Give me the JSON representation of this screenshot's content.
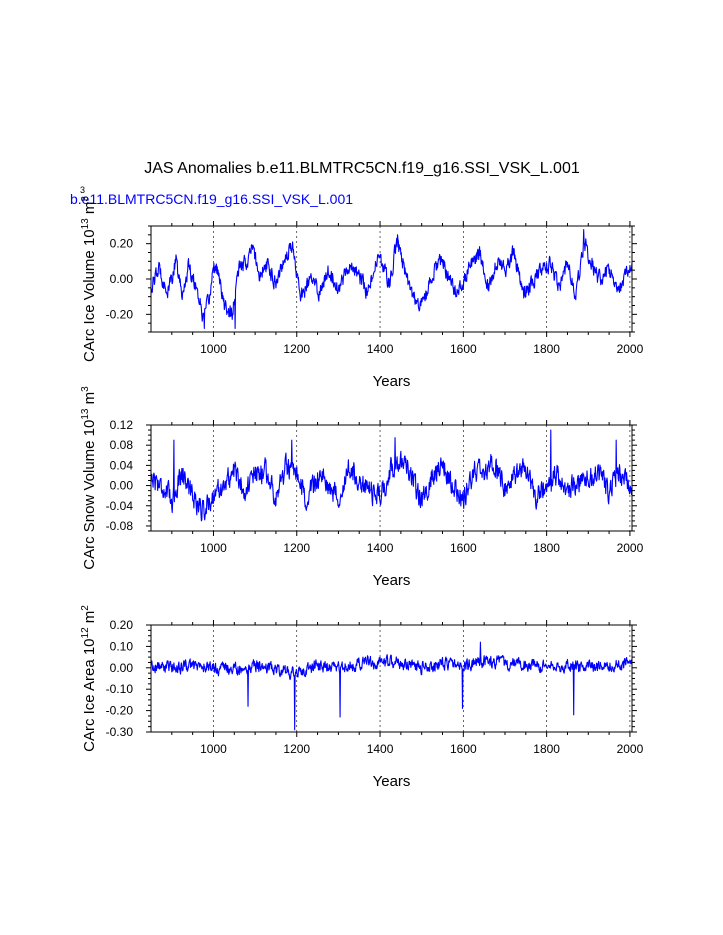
{
  "title": "JAS Anomalies b.e11.BLMTRC5CN.f19_g16.SSI_VSK_L.001",
  "colors": {
    "series": "#0000ff",
    "axis": "#000000",
    "grid": "#000000"
  },
  "chart_data": [
    {
      "type": "line",
      "subtitle": "b.e11.BLMTRC5CN.f19_g16.SSI_VSK_L.001",
      "corner_label": "3",
      "ylabel": "CArc Ice Volume 10",
      "ylabel_sup1": "13",
      "ylabel_mid": " m",
      "ylabel_sup2": "3",
      "xlabel": "Years",
      "xlim": [
        850,
        2005
      ],
      "ylim": [
        -0.3,
        0.3
      ],
      "xticks": [
        1000,
        1200,
        1400,
        1600,
        1800,
        2000
      ],
      "xtick_labels": [
        "1000",
        "1200",
        "1400",
        "1600",
        "1800",
        "2000"
      ],
      "yticks": [
        -0.2,
        0.0,
        0.2
      ],
      "ytick_labels": [
        "-0.20",
        "0.00",
        "0.20"
      ],
      "grid": "vertical dashed at x major ticks",
      "anchors": [
        [
          850,
          -0.05
        ],
        [
          870,
          0.06
        ],
        [
          890,
          -0.08
        ],
        [
          910,
          0.1
        ],
        [
          925,
          -0.1
        ],
        [
          940,
          0.08
        ],
        [
          960,
          -0.05
        ],
        [
          975,
          -0.22
        ],
        [
          990,
          -0.12
        ],
        [
          1000,
          0.08
        ],
        [
          1010,
          0.05
        ],
        [
          1025,
          -0.15
        ],
        [
          1045,
          -0.2
        ],
        [
          1060,
          0.05
        ],
        [
          1080,
          0.1
        ],
        [
          1095,
          0.18
        ],
        [
          1110,
          0.02
        ],
        [
          1130,
          0.08
        ],
        [
          1150,
          -0.02
        ],
        [
          1175,
          0.15
        ],
        [
          1190,
          0.18
        ],
        [
          1210,
          -0.1
        ],
        [
          1235,
          0.0
        ],
        [
          1255,
          -0.08
        ],
        [
          1275,
          0.06
        ],
        [
          1300,
          -0.05
        ],
        [
          1325,
          0.08
        ],
        [
          1350,
          0.02
        ],
        [
          1370,
          -0.08
        ],
        [
          1395,
          0.12
        ],
        [
          1410,
          0.05
        ],
        [
          1425,
          -0.02
        ],
        [
          1440,
          0.22
        ],
        [
          1455,
          0.1
        ],
        [
          1470,
          -0.05
        ],
        [
          1490,
          -0.15
        ],
        [
          1510,
          -0.1
        ],
        [
          1530,
          0.05
        ],
        [
          1550,
          0.1
        ],
        [
          1575,
          -0.05
        ],
        [
          1595,
          -0.05
        ],
        [
          1620,
          0.1
        ],
        [
          1640,
          0.15
        ],
        [
          1660,
          -0.05
        ],
        [
          1680,
          0.1
        ],
        [
          1700,
          0.05
        ],
        [
          1720,
          0.15
        ],
        [
          1745,
          -0.08
        ],
        [
          1770,
          0.0
        ],
        [
          1790,
          0.05
        ],
        [
          1810,
          0.08
        ],
        [
          1830,
          -0.05
        ],
        [
          1850,
          0.1
        ],
        [
          1870,
          -0.1
        ],
        [
          1890,
          0.22
        ],
        [
          1905,
          0.1
        ],
        [
          1925,
          0.0
        ],
        [
          1950,
          0.05
        ],
        [
          1975,
          -0.08
        ],
        [
          1990,
          0.02
        ],
        [
          2005,
          0.05
        ]
      ],
      "amplitude": 0.07,
      "spikes": [
        [
          978,
          -0.28
        ],
        [
          1052,
          -0.28
        ],
        [
          1442,
          0.25
        ],
        [
          1889,
          0.28
        ]
      ]
    },
    {
      "type": "line",
      "ylabel": "CArc Snow Volume 10",
      "ylabel_sup1": "13",
      "ylabel_mid": " m",
      "ylabel_sup2": "3",
      "xlabel": "Years",
      "xlim": [
        850,
        2005
      ],
      "ylim": [
        -0.09,
        0.12
      ],
      "xticks": [
        1000,
        1200,
        1400,
        1600,
        1800,
        2000
      ],
      "xtick_labels": [
        "1000",
        "1200",
        "1400",
        "1600",
        "1800",
        "2000"
      ],
      "yticks": [
        -0.08,
        -0.04,
        0.0,
        0.04,
        0.08,
        0.12
      ],
      "ytick_labels": [
        "-0.08",
        "-0.04",
        "0.00",
        "0.04",
        "0.08",
        "0.12"
      ],
      "grid": "vertical dashed at x major ticks",
      "anchors": [
        [
          850,
          0.02
        ],
        [
          875,
          0.0
        ],
        [
          900,
          -0.03
        ],
        [
          925,
          0.03
        ],
        [
          950,
          -0.02
        ],
        [
          975,
          -0.05
        ],
        [
          1000,
          -0.02
        ],
        [
          1025,
          0.0
        ],
        [
          1050,
          0.03
        ],
        [
          1075,
          -0.01
        ],
        [
          1100,
          0.02
        ],
        [
          1125,
          0.03
        ],
        [
          1150,
          -0.02
        ],
        [
          1175,
          0.04
        ],
        [
          1200,
          0.01
        ],
        [
          1225,
          -0.03
        ],
        [
          1250,
          0.02
        ],
        [
          1275,
          0.0
        ],
        [
          1300,
          -0.02
        ],
        [
          1325,
          0.03
        ],
        [
          1350,
          0.01
        ],
        [
          1375,
          -0.01
        ],
        [
          1400,
          -0.02
        ],
        [
          1425,
          0.03
        ],
        [
          1450,
          0.05
        ],
        [
          1475,
          0.01
        ],
        [
          1500,
          -0.03
        ],
        [
          1525,
          0.02
        ],
        [
          1550,
          0.04
        ],
        [
          1575,
          0.0
        ],
        [
          1600,
          -0.03
        ],
        [
          1625,
          0.03
        ],
        [
          1650,
          0.02
        ],
        [
          1675,
          0.05
        ],
        [
          1700,
          -0.01
        ],
        [
          1725,
          0.02
        ],
        [
          1750,
          0.03
        ],
        [
          1775,
          -0.02
        ],
        [
          1800,
          0.0
        ],
        [
          1825,
          0.02
        ],
        [
          1850,
          -0.02
        ],
        [
          1875,
          0.01
        ],
        [
          1900,
          0.02
        ],
        [
          1925,
          0.03
        ],
        [
          1950,
          -0.01
        ],
        [
          1975,
          0.02
        ],
        [
          2005,
          0.0
        ]
      ],
      "amplitude": 0.035,
      "spikes": [
        [
          905,
          0.09
        ],
        [
          1188,
          0.09
        ],
        [
          1436,
          0.095
        ],
        [
          1810,
          0.11
        ],
        [
          1967,
          0.09
        ]
      ]
    },
    {
      "type": "line",
      "ylabel": "CArc Ice Area 10",
      "ylabel_sup1": "12",
      "ylabel_mid": " m",
      "ylabel_sup2": "2",
      "xlabel": "Years",
      "xlim": [
        850,
        2005
      ],
      "ylim": [
        -0.3,
        0.2
      ],
      "xticks": [
        1000,
        1200,
        1400,
        1600,
        1800,
        2000
      ],
      "xtick_labels": [
        "1000",
        "1200",
        "1400",
        "1600",
        "1800",
        "2000"
      ],
      "yticks": [
        -0.3,
        -0.2,
        -0.1,
        0.0,
        0.1,
        0.2
      ],
      "ytick_labels": [
        "-0.30",
        "-0.20",
        "-0.10",
        "0.00",
        "0.10",
        "0.20"
      ],
      "grid": "vertical dashed at x major ticks",
      "anchors": [
        [
          850,
          0.01
        ],
        [
          900,
          0.0
        ],
        [
          950,
          0.01
        ],
        [
          1000,
          0.0
        ],
        [
          1050,
          -0.01
        ],
        [
          1100,
          0.01
        ],
        [
          1150,
          0.0
        ],
        [
          1200,
          -0.03
        ],
        [
          1250,
          0.01
        ],
        [
          1300,
          0.0
        ],
        [
          1350,
          0.02
        ],
        [
          1400,
          0.03
        ],
        [
          1450,
          0.02
        ],
        [
          1500,
          0.0
        ],
        [
          1550,
          0.02
        ],
        [
          1600,
          0.01
        ],
        [
          1650,
          0.03
        ],
        [
          1700,
          0.02
        ],
        [
          1750,
          0.01
        ],
        [
          1800,
          0.0
        ],
        [
          1850,
          0.01
        ],
        [
          1900,
          0.0
        ],
        [
          1950,
          0.01
        ],
        [
          2005,
          0.02
        ]
      ],
      "amplitude": 0.045,
      "spikes": [
        [
          1195,
          -0.29
        ],
        [
          1304,
          -0.23
        ],
        [
          1865,
          -0.22
        ],
        [
          1598,
          -0.19
        ],
        [
          1083,
          -0.18
        ],
        [
          1641,
          0.12
        ]
      ]
    }
  ]
}
